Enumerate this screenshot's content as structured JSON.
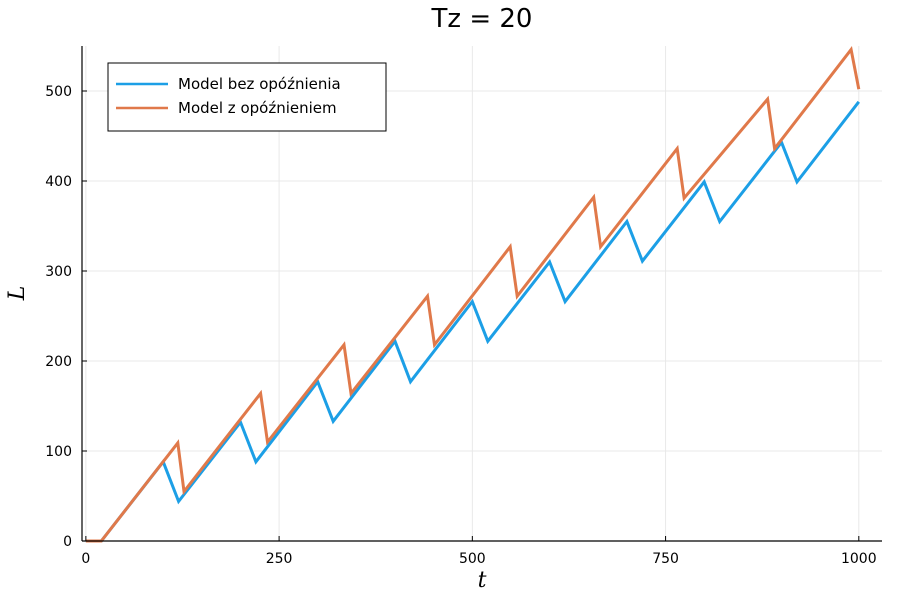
{
  "chart_data": {
    "type": "line",
    "title": "Tz = 20",
    "xlabel": "t",
    "ylabel": "L",
    "xlim": [
      -5,
      1030
    ],
    "ylim": [
      0,
      550
    ],
    "xticks": [
      0,
      250,
      500,
      750,
      1000
    ],
    "yticks": [
      0,
      100,
      200,
      300,
      400,
      500
    ],
    "grid": true,
    "legend_position": "top-left",
    "series": [
      {
        "name": "Model bez opóźnienia",
        "color": "#1c9fe6",
        "x": [
          0,
          20,
          100,
          120,
          200,
          220,
          300,
          320,
          400,
          420,
          500,
          520,
          600,
          620,
          700,
          720,
          800,
          820,
          900,
          920,
          1000
        ],
        "y": [
          0,
          0,
          88,
          44,
          132,
          88,
          177,
          133,
          222,
          177,
          266,
          222,
          310,
          266,
          355,
          311,
          399,
          355,
          443,
          399,
          488
        ]
      },
      {
        "name": "Model z opóźnieniem",
        "color": "#e0794a",
        "x": [
          0,
          20,
          119,
          127,
          226,
          235,
          334,
          343,
          442,
          451,
          549,
          558,
          657,
          666,
          765,
          774,
          882,
          891,
          990,
          1000
        ],
        "y": [
          0,
          0,
          109,
          55,
          164,
          110,
          218,
          164,
          272,
          218,
          327,
          272,
          382,
          327,
          436,
          381,
          491,
          436,
          546,
          502
        ]
      }
    ]
  }
}
